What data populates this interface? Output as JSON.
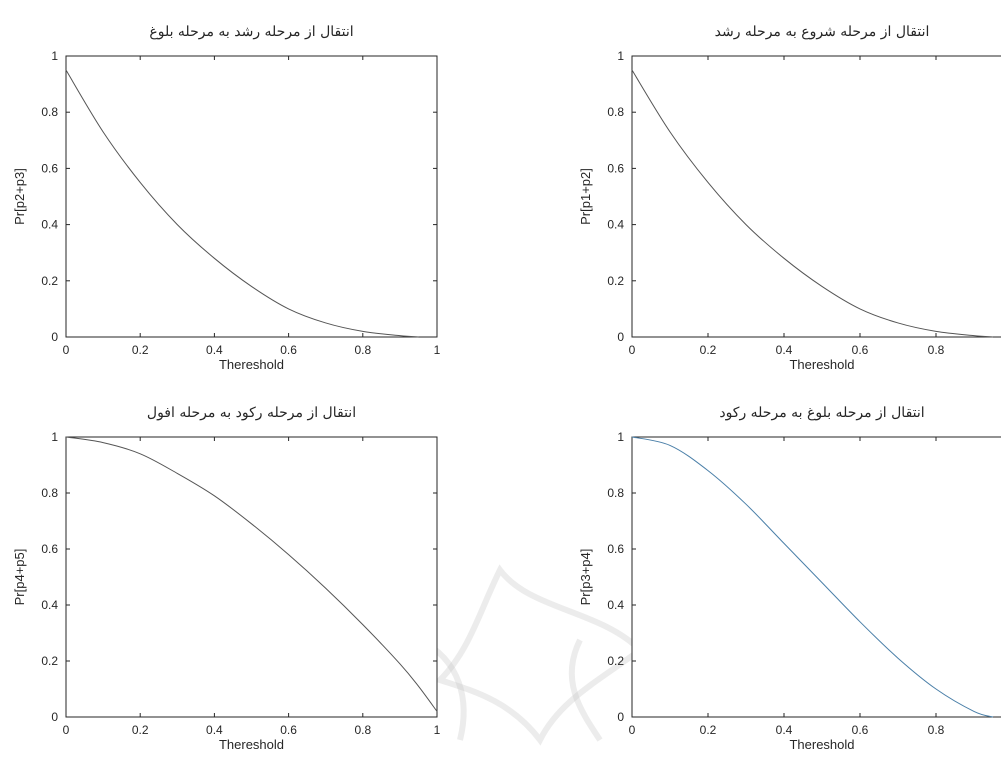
{
  "chart_data": [
    {
      "type": "line",
      "title": "انتقال از مرحله رشد به مرحله بلوغ",
      "xlabel": "Thereshold",
      "ylabel": "Pr[p2+p3]",
      "xlim": [
        0,
        1
      ],
      "ylim": [
        0,
        1
      ],
      "xticks": [
        "0",
        "0.2",
        "0.4",
        "0.6",
        "0.8",
        "1"
      ],
      "yticks": [
        "0",
        "0.2",
        "0.4",
        "0.6",
        "0.8",
        "1"
      ],
      "grid": false,
      "color": "#555555",
      "x": [
        0.0,
        0.1,
        0.2,
        0.3,
        0.4,
        0.5,
        0.6,
        0.7,
        0.8,
        0.9,
        0.95
      ],
      "y": [
        0.95,
        0.73,
        0.55,
        0.4,
        0.28,
        0.18,
        0.1,
        0.05,
        0.02,
        0.005,
        0.0
      ]
    },
    {
      "type": "line",
      "title": "انتقال از مرحله شروع به مرحله رشد",
      "xlabel": "Thereshold",
      "ylabel": "Pr[p1+p2]",
      "xlim": [
        0,
        1
      ],
      "ylim": [
        0,
        1
      ],
      "xticks": [
        "0",
        "0.2",
        "0.4",
        "0.6",
        "0.8"
      ],
      "yticks": [
        "0",
        "0.2",
        "0.4",
        "0.6",
        "0.8",
        "1"
      ],
      "grid": false,
      "color": "#555555",
      "x": [
        0.0,
        0.1,
        0.2,
        0.3,
        0.4,
        0.5,
        0.6,
        0.7,
        0.8,
        0.9,
        0.95
      ],
      "y": [
        0.95,
        0.73,
        0.55,
        0.4,
        0.28,
        0.18,
        0.1,
        0.05,
        0.02,
        0.005,
        0.0
      ]
    },
    {
      "type": "line",
      "title": "انتقال از مرحله رکود  به مرحله افول",
      "xlabel": "Thereshold",
      "ylabel": "Pr[p4+p5]",
      "xlim": [
        0,
        1
      ],
      "ylim": [
        0,
        1
      ],
      "xticks": [
        "0",
        "0.2",
        "0.4",
        "0.6",
        "0.8",
        "1"
      ],
      "yticks": [
        "0",
        "0.2",
        "0.4",
        "0.6",
        "0.8",
        "1"
      ],
      "grid": false,
      "color": "#555555",
      "x": [
        0.0,
        0.1,
        0.2,
        0.3,
        0.4,
        0.5,
        0.6,
        0.7,
        0.8,
        0.9,
        0.95,
        1.0
      ],
      "y": [
        1.0,
        0.98,
        0.94,
        0.87,
        0.79,
        0.69,
        0.58,
        0.46,
        0.33,
        0.19,
        0.11,
        0.02
      ]
    },
    {
      "type": "line",
      "title": "انتقال از مرحله بلوغ به مرحله رکود",
      "xlabel": "Thereshold",
      "ylabel": "Pr[p3+p4]",
      "xlim": [
        0,
        1
      ],
      "ylim": [
        0,
        1
      ],
      "xticks": [
        "0",
        "0.2",
        "0.4",
        "0.6",
        "0.8"
      ],
      "yticks": [
        "0",
        "0.2",
        "0.4",
        "0.6",
        "0.8",
        "1"
      ],
      "grid": false,
      "color": "#4a7fa8",
      "x": [
        0.0,
        0.1,
        0.2,
        0.3,
        0.4,
        0.5,
        0.6,
        0.7,
        0.8,
        0.9,
        0.95
      ],
      "y": [
        1.0,
        0.97,
        0.88,
        0.76,
        0.62,
        0.48,
        0.34,
        0.21,
        0.1,
        0.02,
        0.0
      ]
    }
  ]
}
